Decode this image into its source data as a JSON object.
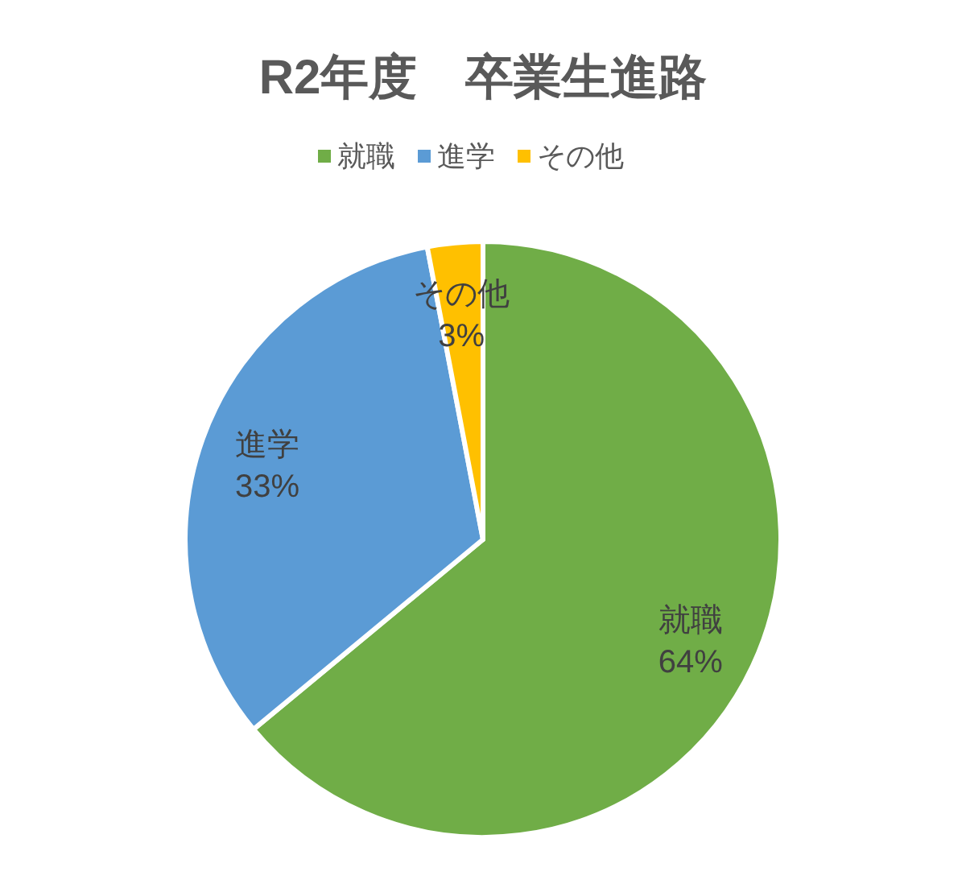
{
  "chart_data": {
    "type": "pie",
    "title": "R2年度　卒業生進路",
    "categories": [
      "就職",
      "進学",
      "その他"
    ],
    "values": [
      64,
      33,
      3
    ],
    "value_labels": [
      "64%",
      "33%",
      "3%"
    ],
    "colors": [
      "#70ad47",
      "#5b9bd5",
      "#ffc000"
    ],
    "legend": "top"
  }
}
